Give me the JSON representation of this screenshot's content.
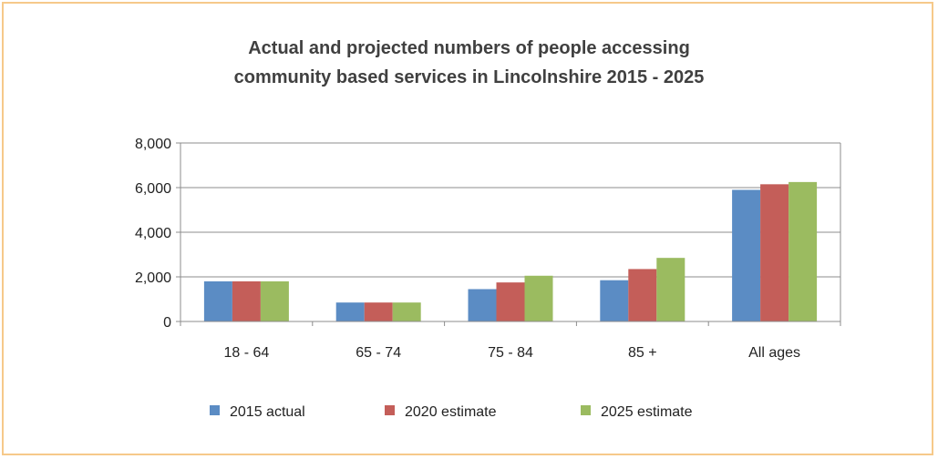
{
  "chart_data": {
    "type": "bar",
    "title_lines": [
      "Actual and projected numbers of people accessing",
      "community based services in Lincolnshire 2015 - 2025"
    ],
    "categories": [
      "18 - 64",
      "65 - 74",
      "75 - 84",
      "85 +",
      "All ages"
    ],
    "series": [
      {
        "name": "2015 actual",
        "color": "#5b8cc4",
        "values": [
          1800,
          850,
          1450,
          1850,
          5900
        ]
      },
      {
        "name": "2020 estimate",
        "color": "#c45e59",
        "values": [
          1800,
          850,
          1750,
          2350,
          6150
        ]
      },
      {
        "name": "2025 estimate",
        "color": "#9bbb60",
        "values": [
          1800,
          850,
          2050,
          2850,
          6250
        ]
      }
    ],
    "ylim": [
      0,
      8000
    ],
    "yticks": [
      "0",
      "2,000",
      "4,000",
      "6,000",
      "8,000"
    ],
    "ytick_values": [
      0,
      2000,
      4000,
      6000,
      8000
    ],
    "grid": true,
    "legend_position": "bottom"
  }
}
